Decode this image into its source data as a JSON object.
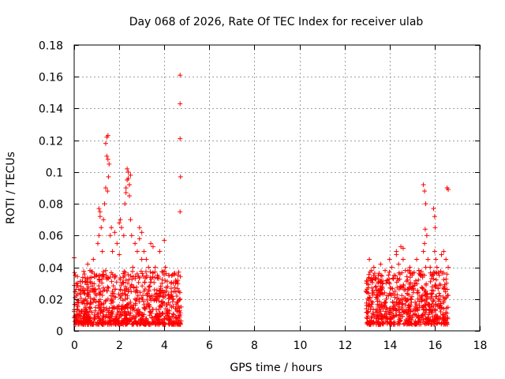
{
  "chart_data": {
    "type": "scatter",
    "title": "Day 068 of 2026, Rate Of TEC Index for receiver ulab",
    "xlabel": "GPS time / hours",
    "ylabel": "ROTI / TECUs",
    "xlim": [
      0,
      18
    ],
    "ylim": [
      0,
      0.18
    ],
    "xticks": [
      0,
      2,
      4,
      6,
      8,
      10,
      12,
      14,
      16,
      18
    ],
    "xtick_labels": [
      "0",
      "2",
      "4",
      "6",
      "8",
      "10",
      "12",
      "14",
      "16",
      "18"
    ],
    "yticks": [
      0,
      0.02,
      0.04,
      0.06,
      0.08,
      0.1,
      0.12,
      0.14,
      0.16,
      0.18
    ],
    "ytick_labels": [
      "0",
      "0.02",
      "0.04",
      "0.06",
      "0.08",
      "0.1",
      "0.12",
      "0.14",
      "0.16",
      "0.18"
    ],
    "grid": true,
    "marker": "+",
    "color": "#ff0000",
    "series": [
      {
        "name": "ROTI",
        "x": [
          0.0,
          0.05,
          0.1,
          0.15,
          0.2,
          0.3,
          0.35,
          0.4,
          0.5,
          0.6,
          0.7,
          0.8,
          0.85,
          0.9,
          1.0,
          1.05,
          1.1,
          1.15,
          1.2,
          1.25,
          1.3,
          1.35,
          1.4,
          1.45,
          1.5,
          1.55,
          1.6,
          1.65,
          1.7,
          1.8,
          1.9,
          2.0,
          2.05,
          2.1,
          2.2,
          2.25,
          2.3,
          2.35,
          2.4,
          2.45,
          2.5,
          2.55,
          2.6,
          2.7,
          2.8,
          2.9,
          3.0,
          3.1,
          3.2,
          3.3,
          3.4,
          3.5,
          3.6,
          3.7,
          3.8,
          3.9,
          4.0,
          4.05,
          4.1,
          4.2,
          4.3,
          4.4,
          4.5,
          4.6,
          4.65,
          4.7,
          4.75,
          0.1,
          0.3,
          0.5,
          0.7,
          0.9,
          1.1,
          1.3,
          1.5,
          1.7,
          1.9,
          2.1,
          2.3,
          2.5,
          2.7,
          2.9,
          3.1,
          3.3,
          3.5,
          3.7,
          3.9,
          4.1,
          4.3,
          4.5,
          4.7,
          1.4,
          1.45,
          1.5,
          1.52,
          1.48,
          2.35,
          2.4,
          2.45,
          2.5,
          2.3,
          1.1,
          1.15,
          2.9,
          3.0,
          2.0,
          4.7,
          4.7,
          4.7,
          4.72,
          4.7,
          12.95,
          13.0,
          13.1,
          13.2,
          13.3,
          13.4,
          13.5,
          13.6,
          13.7,
          13.8,
          13.9,
          14.0,
          14.1,
          14.2,
          14.3,
          14.4,
          14.5,
          14.6,
          14.7,
          14.8,
          14.9,
          15.0,
          15.1,
          15.2,
          15.3,
          15.4,
          15.5,
          15.55,
          15.6,
          15.65,
          15.7,
          15.8,
          15.9,
          16.0,
          16.05,
          16.1,
          16.2,
          16.3,
          16.4,
          16.5,
          16.6,
          13.05,
          13.25,
          13.45,
          13.65,
          13.85,
          14.05,
          14.25,
          14.45,
          14.65,
          14.85,
          15.05,
          15.25,
          15.45,
          15.65,
          15.85,
          16.05,
          16.25,
          16.45,
          15.5,
          15.55,
          15.6,
          15.58,
          15.95,
          16.0,
          16.02,
          16.55,
          16.6,
          14.3,
          14.6
        ],
        "y": [
          0.046,
          0.035,
          0.022,
          0.03,
          0.018,
          0.028,
          0.012,
          0.025,
          0.02,
          0.042,
          0.038,
          0.03,
          0.045,
          0.025,
          0.035,
          0.055,
          0.06,
          0.075,
          0.065,
          0.05,
          0.07,
          0.08,
          0.09,
          0.11,
          0.123,
          0.105,
          0.06,
          0.065,
          0.05,
          0.062,
          0.055,
          0.048,
          0.07,
          0.065,
          0.06,
          0.08,
          0.09,
          0.095,
          0.1,
          0.085,
          0.07,
          0.06,
          0.04,
          0.055,
          0.05,
          0.065,
          0.045,
          0.05,
          0.045,
          0.04,
          0.055,
          0.053,
          0.04,
          0.035,
          0.05,
          0.03,
          0.057,
          0.04,
          0.025,
          0.035,
          0.03,
          0.02,
          0.03,
          0.035,
          0.025,
          0.02,
          0.015,
          0.008,
          0.012,
          0.006,
          0.015,
          0.01,
          0.018,
          0.008,
          0.02,
          0.012,
          0.01,
          0.022,
          0.015,
          0.018,
          0.02,
          0.012,
          0.025,
          0.015,
          0.02,
          0.01,
          0.016,
          0.012,
          0.008,
          0.014,
          0.01,
          0.118,
          0.122,
          0.108,
          0.097,
          0.088,
          0.102,
          0.096,
          0.092,
          0.098,
          0.087,
          0.077,
          0.072,
          0.058,
          0.062,
          0.068,
          0.161,
          0.143,
          0.121,
          0.097,
          0.075,
          0.025,
          0.03,
          0.045,
          0.038,
          0.04,
          0.028,
          0.035,
          0.042,
          0.03,
          0.038,
          0.032,
          0.045,
          0.04,
          0.035,
          0.048,
          0.042,
          0.053,
          0.045,
          0.038,
          0.032,
          0.04,
          0.035,
          0.03,
          0.045,
          0.038,
          0.035,
          0.05,
          0.055,
          0.04,
          0.06,
          0.045,
          0.04,
          0.035,
          0.05,
          0.045,
          0.04,
          0.035,
          0.048,
          0.05,
          0.045,
          0.04,
          0.012,
          0.018,
          0.01,
          0.015,
          0.02,
          0.008,
          0.014,
          0.018,
          0.012,
          0.016,
          0.01,
          0.02,
          0.015,
          0.018,
          0.012,
          0.01,
          0.016,
          0.008,
          0.092,
          0.088,
          0.08,
          0.064,
          0.077,
          0.072,
          0.065,
          0.09,
          0.089,
          0.05,
          0.052
        ]
      }
    ],
    "scatter_cluster_note_count": 2
  }
}
